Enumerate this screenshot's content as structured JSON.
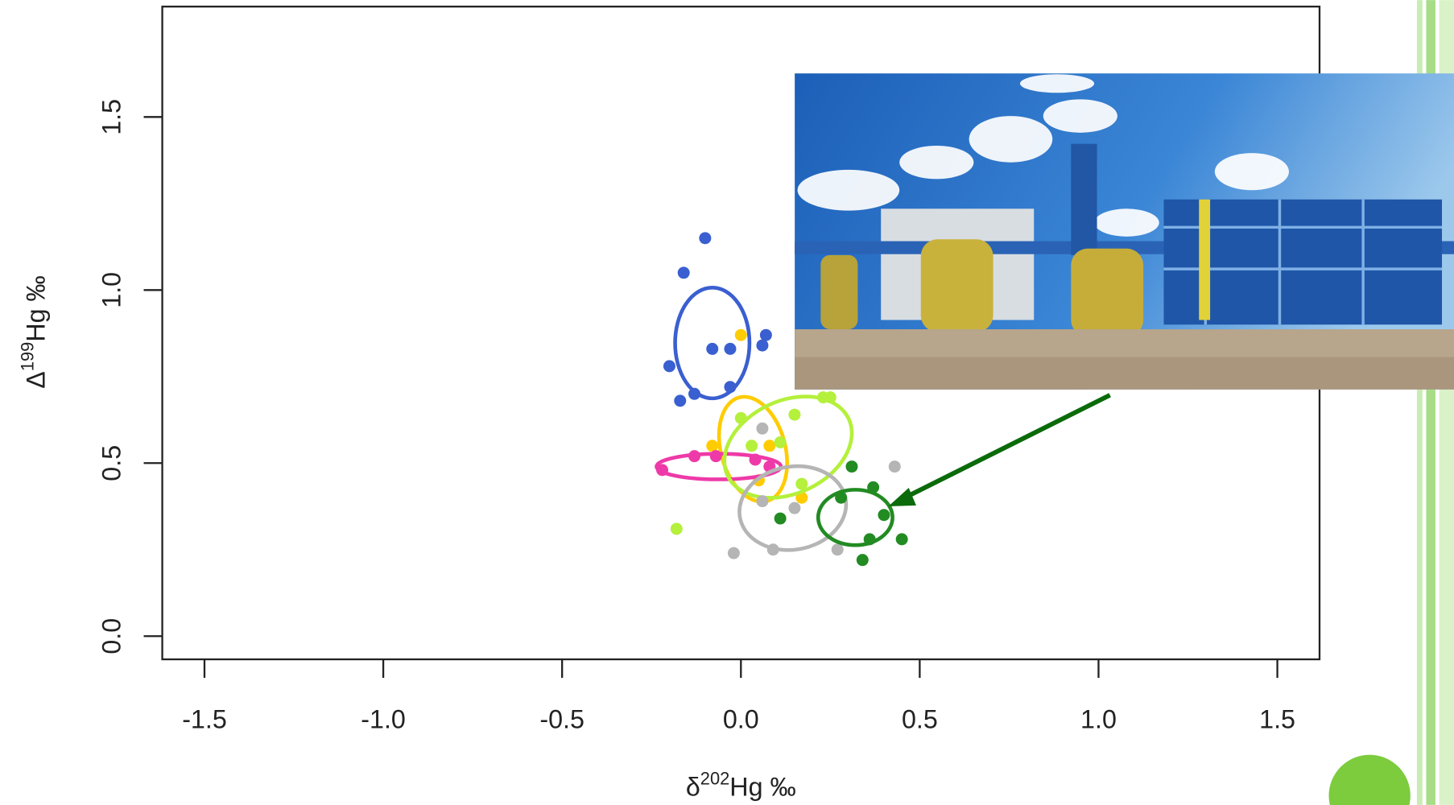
{
  "chart_data": {
    "type": "scatter",
    "xlabel": [
      "δ",
      "202",
      "Hg ‰"
    ],
    "ylabel": [
      "Δ",
      "199",
      "Hg ‰"
    ],
    "xlim": [
      -1.618,
      1.618
    ],
    "ylim": [
      -0.067,
      1.819
    ],
    "xticks": [
      -1.5,
      {
        "value": -1,
        "label": "-1.0"
      },
      -0.5,
      {
        "value": 0,
        "label": "0.0"
      },
      0.5,
      {
        "value": 1,
        "label": "1.0"
      },
      1.5
    ],
    "yticks": [
      {
        "value": 0,
        "label": "0.0"
      },
      0.5,
      {
        "value": 1,
        "label": "1.0"
      },
      1.5
    ],
    "series": [
      {
        "color": "#3a5fd0",
        "x": [
          -0.1,
          -0.16,
          -0.2,
          -0.17,
          -0.13,
          -0.08,
          -0.03,
          0.06,
          0.07,
          -0.03
        ],
        "values": [
          1.15,
          1.05,
          0.78,
          0.68,
          0.7,
          0.83,
          0.83,
          0.84,
          0.87,
          0.72
        ],
        "ellipse": [
          -0.08,
          0.847,
          0.104,
          0.16,
          0
        ]
      },
      {
        "color": "#ffcc00",
        "x": [
          0,
          -0.08,
          0.08,
          0.17,
          0.05
        ],
        "values": [
          0.87,
          0.55,
          0.55,
          0.4,
          0.45
        ],
        "ellipse": [
          0.034,
          0.54,
          0.09,
          0.155,
          -15
        ]
      },
      {
        "color": "#ee3aa8",
        "x": [
          -0.22,
          -0.13,
          -0.07,
          0.04,
          0.08
        ],
        "values": [
          0.48,
          0.52,
          0.52,
          0.51,
          0.49
        ],
        "ellipse": [
          -0.062,
          0.49,
          0.174,
          0.037,
          0
        ]
      },
      {
        "color": "#b4f03c",
        "x": [
          -0.18,
          0,
          0.15,
          0.23,
          0.25,
          0.11,
          0.03,
          0.17
        ],
        "values": [
          0.31,
          0.63,
          0.64,
          0.69,
          0.69,
          0.56,
          0.55,
          0.44
        ],
        "ellipse": [
          0.132,
          0.546,
          0.187,
          0.134,
          -25
        ]
      },
      {
        "color": "#b5b5b5",
        "x": [
          0.06,
          -0.02,
          0.09,
          0.15,
          0.27,
          0.43,
          0.06
        ],
        "values": [
          0.6,
          0.24,
          0.25,
          0.37,
          0.25,
          0.49,
          0.39
        ],
        "ellipse": [
          0.145,
          0.37,
          0.15,
          0.12,
          -10
        ]
      },
      {
        "color": "#228b22",
        "x": [
          0.31,
          0.37,
          0.28,
          0.36,
          0.45,
          0.34,
          0.11,
          0.4
        ],
        "values": [
          0.49,
          0.43,
          0.4,
          0.28,
          0.28,
          0.22,
          0.34,
          0.35
        ],
        "ellipse": [
          0.32,
          0.343,
          0.104,
          0.08,
          0
        ]
      }
    ]
  }
}
